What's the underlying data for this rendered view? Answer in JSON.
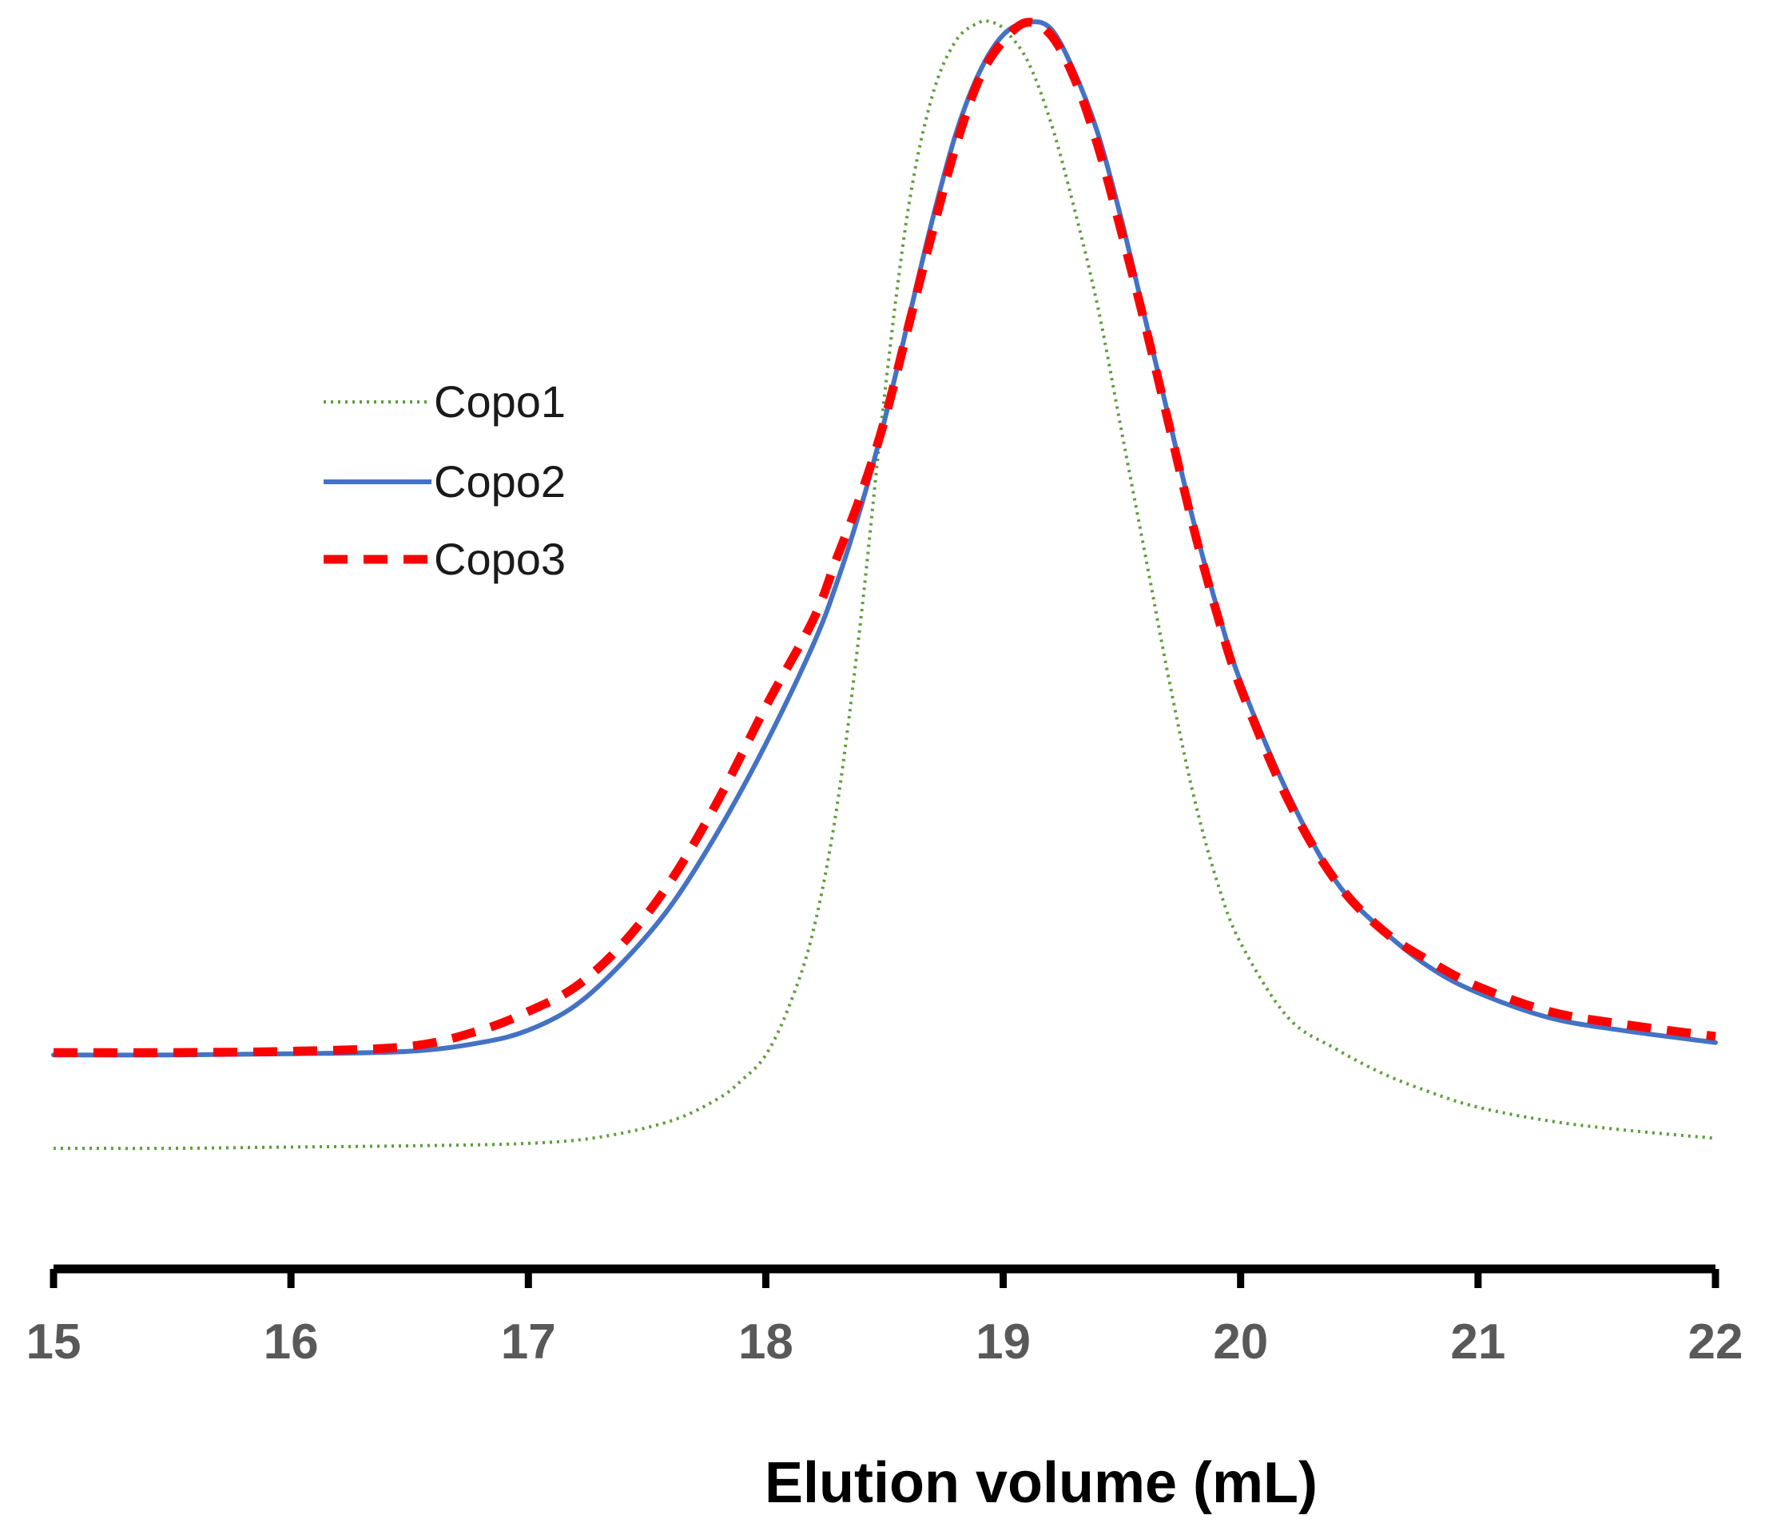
{
  "chart_data": {
    "type": "line",
    "title": "",
    "xlabel": "Elution volume (mL)",
    "ylabel": "",
    "xlim": [
      15,
      22
    ],
    "ylim": [
      0,
      1
    ],
    "xticks": [
      "15",
      "16",
      "17",
      "18",
      "19",
      "20",
      "21",
      "22"
    ],
    "grid": false,
    "legend_position": "top-left",
    "series": [
      {
        "name": "Copo1",
        "color": "#5e9c3a",
        "style": "dotted",
        "x": [
          15.0,
          15.5,
          16.0,
          16.5,
          17.0,
          17.3,
          17.6,
          17.8,
          17.9,
          18.0,
          18.1,
          18.2,
          18.3,
          18.4,
          18.5,
          18.6,
          18.7,
          18.8,
          18.9,
          18.95,
          19.0,
          19.1,
          19.2,
          19.3,
          19.4,
          19.5,
          19.6,
          19.7,
          19.8,
          19.9,
          20.0,
          20.2,
          20.4,
          20.6,
          20.8,
          21.0,
          21.3,
          21.6,
          22.0
        ],
        "y": [
          0.095,
          0.095,
          0.096,
          0.097,
          0.099,
          0.104,
          0.117,
          0.135,
          0.15,
          0.17,
          0.21,
          0.27,
          0.37,
          0.52,
          0.7,
          0.85,
          0.94,
          0.985,
          1.0,
          1.0,
          0.995,
          0.97,
          0.92,
          0.85,
          0.77,
          0.67,
          0.57,
          0.47,
          0.38,
          0.31,
          0.26,
          0.2,
          0.175,
          0.155,
          0.14,
          0.128,
          0.117,
          0.11,
          0.103
        ]
      },
      {
        "name": "Copo2",
        "color": "#4472c4",
        "style": "solid",
        "x": [
          15.0,
          15.5,
          16.0,
          16.5,
          16.8,
          17.0,
          17.2,
          17.4,
          17.6,
          17.8,
          18.0,
          18.2,
          18.3,
          18.4,
          18.5,
          18.6,
          18.7,
          18.8,
          18.9,
          19.0,
          19.1,
          19.2,
          19.3,
          19.4,
          19.5,
          19.6,
          19.7,
          19.8,
          19.9,
          20.0,
          20.2,
          20.4,
          20.6,
          20.8,
          21.0,
          21.3,
          21.6,
          22.0
        ],
        "y": [
          0.17,
          0.17,
          0.171,
          0.173,
          0.18,
          0.19,
          0.21,
          0.245,
          0.29,
          0.35,
          0.42,
          0.5,
          0.55,
          0.61,
          0.68,
          0.76,
          0.84,
          0.91,
          0.96,
          0.99,
          1.0,
          0.995,
          0.96,
          0.91,
          0.84,
          0.76,
          0.68,
          0.6,
          0.53,
          0.47,
          0.38,
          0.31,
          0.27,
          0.24,
          0.22,
          0.2,
          0.19,
          0.18
        ]
      },
      {
        "name": "Copo3",
        "color": "#ff0000",
        "style": "dashed",
        "x": [
          15.0,
          15.5,
          16.0,
          16.5,
          16.8,
          17.0,
          17.2,
          17.4,
          17.6,
          17.8,
          18.0,
          18.2,
          18.3,
          18.4,
          18.5,
          18.6,
          18.7,
          18.8,
          18.9,
          19.0,
          19.1,
          19.2,
          19.3,
          19.4,
          19.5,
          19.6,
          19.7,
          19.8,
          19.9,
          20.0,
          20.2,
          20.4,
          20.6,
          20.8,
          21.0,
          21.3,
          21.6,
          22.0
        ],
        "y": [
          0.172,
          0.172,
          0.173,
          0.177,
          0.19,
          0.205,
          0.225,
          0.26,
          0.31,
          0.375,
          0.45,
          0.52,
          0.57,
          0.62,
          0.68,
          0.755,
          0.83,
          0.9,
          0.955,
          0.985,
          1.0,
          0.99,
          0.955,
          0.9,
          0.83,
          0.755,
          0.675,
          0.595,
          0.525,
          0.465,
          0.375,
          0.31,
          0.27,
          0.245,
          0.225,
          0.205,
          0.195,
          0.185
        ]
      }
    ]
  }
}
